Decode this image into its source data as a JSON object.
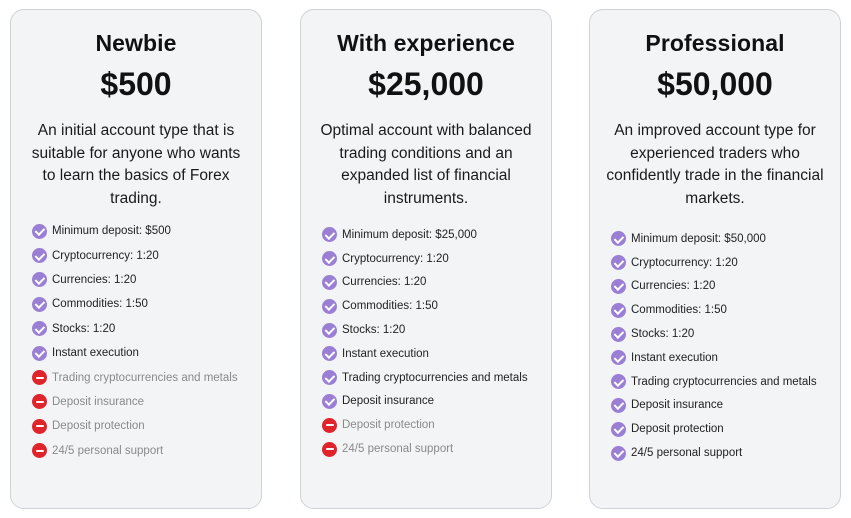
{
  "plans": [
    {
      "title": "Newbie",
      "price": "$500",
      "description": "An initial account type that is suitable for anyone who wants to learn the basics of Forex trading.",
      "features": [
        {
          "label": "Minimum deposit:  $500",
          "included": true,
          "icon": "check-icon"
        },
        {
          "label": "Cryptocurrency:  1:20",
          "included": true,
          "icon": "check-icon"
        },
        {
          "label": "Currencies:  1:20",
          "included": true,
          "icon": "check-icon"
        },
        {
          "label": "Commodities:  1:50",
          "included": true,
          "icon": "check-icon"
        },
        {
          "label": "Stocks:  1:20",
          "included": true,
          "icon": "check-icon"
        },
        {
          "label": "Instant execution",
          "included": true,
          "icon": "check-icon"
        },
        {
          "label": "Trading cryptocurrencies and metals",
          "included": false,
          "icon": "minus-icon"
        },
        {
          "label": "Deposit insurance",
          "included": false,
          "icon": "minus-icon"
        },
        {
          "label": "Deposit protection",
          "included": false,
          "icon": "minus-icon"
        },
        {
          "label": "24/5 personal support",
          "included": false,
          "icon": "minus-icon"
        }
      ]
    },
    {
      "title": "With experience",
      "price": "$25,000",
      "description": "Optimal account with balanced trading conditions and an expanded list of financial instruments.",
      "features": [
        {
          "label": "Minimum deposit:  $25,000",
          "included": true,
          "icon": "check-icon"
        },
        {
          "label": "Cryptocurrency:  1:20",
          "included": true,
          "icon": "check-icon"
        },
        {
          "label": "Currencies:  1:20",
          "included": true,
          "icon": "check-icon"
        },
        {
          "label": "Commodities:  1:50",
          "included": true,
          "icon": "check-icon"
        },
        {
          "label": "Stocks:  1:20",
          "included": true,
          "icon": "check-icon"
        },
        {
          "label": "Instant execution",
          "included": true,
          "icon": "check-icon"
        },
        {
          "label": "Trading cryptocurrencies and metals",
          "included": true,
          "icon": "check-icon"
        },
        {
          "label": "Deposit insurance",
          "included": true,
          "icon": "check-icon"
        },
        {
          "label": "Deposit protection",
          "included": false,
          "icon": "minus-icon"
        },
        {
          "label": "24/5 personal support",
          "included": false,
          "icon": "minus-icon"
        }
      ]
    },
    {
      "title": "Professional",
      "price": "$50,000",
      "description": "An improved account type for experienced traders who confidently trade in the financial markets.",
      "features": [
        {
          "label": "Minimum deposit:  $50,000",
          "included": true,
          "icon": "check-icon"
        },
        {
          "label": "Cryptocurrency:  1:20",
          "included": true,
          "icon": "check-icon"
        },
        {
          "label": "Currencies:  1:20",
          "included": true,
          "icon": "check-icon"
        },
        {
          "label": "Commodities:  1:50",
          "included": true,
          "icon": "check-icon"
        },
        {
          "label": "Stocks:  1:20",
          "included": true,
          "icon": "check-icon"
        },
        {
          "label": "Instant execution",
          "included": true,
          "icon": "check-icon"
        },
        {
          "label": "Trading cryptocurrencies and metals",
          "included": true,
          "icon": "check-icon"
        },
        {
          "label": "Deposit insurance",
          "included": true,
          "icon": "check-icon"
        },
        {
          "label": "Deposit protection",
          "included": true,
          "icon": "check-icon"
        },
        {
          "label": "24/5 personal support",
          "included": true,
          "icon": "check-icon"
        }
      ]
    }
  ],
  "colors": {
    "included_icon": "#9b7fd4",
    "excluded_icon": "#e0242c",
    "card_background": "#f3f4f6",
    "card_border": "#cfd2d8"
  }
}
